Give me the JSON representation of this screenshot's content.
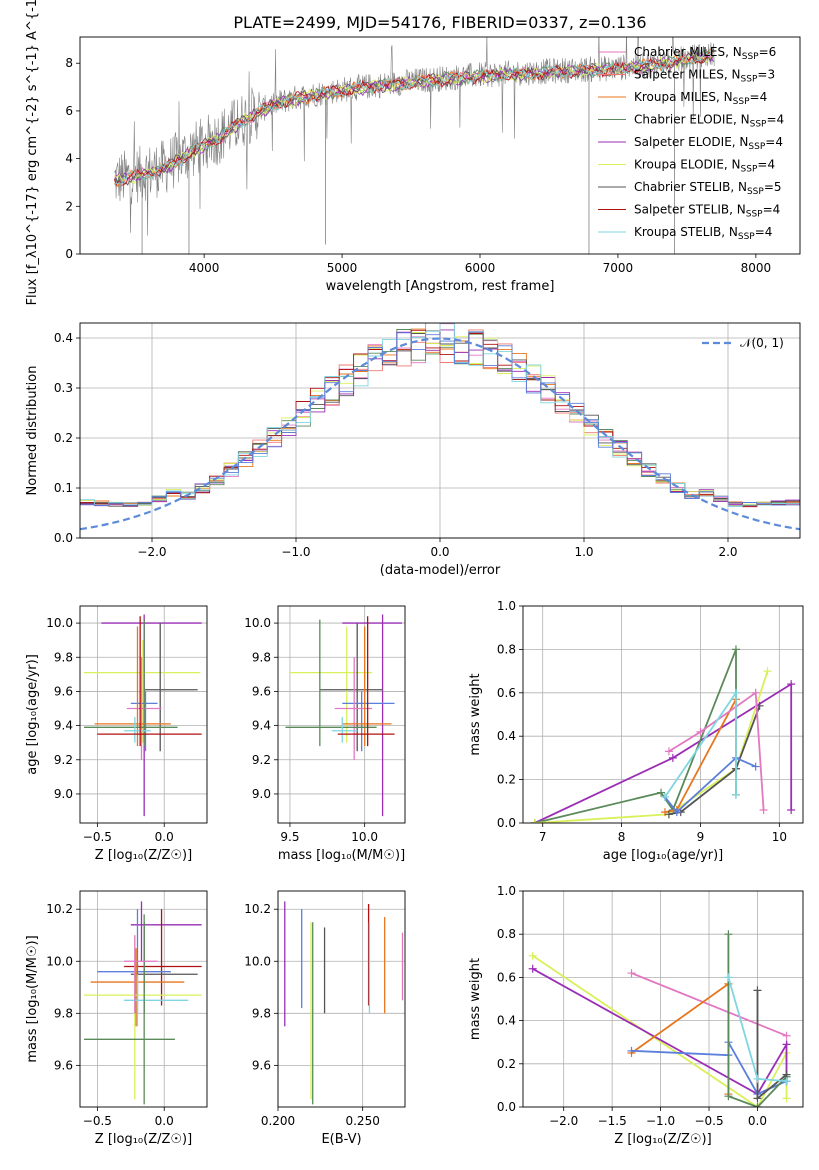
{
  "title": "PLATE=2499, MJD=54176, FIBERID=0337, z=0.136",
  "colors": {
    "Chabrier MILES": "#e377c2",
    "Salpeter MILES": "#f07a72",
    "Kroupa MILES": "#e8761e",
    "Chabrier ELODIE": "#5a8a5a",
    "Salpeter ELODIE": "#9a2fb5",
    "Kroupa ELODIE": "#d9f05a",
    "Chabrier STELIB": "#555555",
    "Salpeter STELIB": "#b01010",
    "Kroupa STELIB": "#7fd6e0",
    "blue_extra": "#5b7fdb",
    "gray_data": "#808080",
    "normal_curve": "#5b8bd9"
  },
  "chart_data": [
    {
      "id": "spectrum",
      "type": "line",
      "xlabel": "wavelength [Angstrom, rest frame]",
      "ylabel": "Flux [f_λ10^{-17} erg cm^{-2} s^{-1} A^{-1}]",
      "xlim": [
        3100,
        8320
      ],
      "ylim": [
        0,
        9.1
      ],
      "xticks": [
        4000,
        5000,
        6000,
        7000,
        8000
      ],
      "yticks": [
        0,
        2,
        4,
        6,
        8
      ],
      "grid": false,
      "legend_position": "top-right",
      "legend": [
        {
          "name": "Chabrier MILES",
          "nssp": "6"
        },
        {
          "name": "Salpeter MILES",
          "nssp": "3"
        },
        {
          "name": "Kroupa MILES",
          "nssp": "4"
        },
        {
          "name": "Chabrier ELODIE",
          "nssp": "4"
        },
        {
          "name": "Salpeter ELODIE",
          "nssp": "4"
        },
        {
          "name": "Kroupa ELODIE",
          "nssp": "4"
        },
        {
          "name": "Chabrier STELIB",
          "nssp": "5"
        },
        {
          "name": "Salpeter STELIB",
          "nssp": "4"
        },
        {
          "name": "Kroupa STELIB",
          "nssp": "4"
        }
      ],
      "continuum": {
        "x": [
          3350,
          3500,
          3700,
          3900,
          4100,
          4300,
          4500,
          4700,
          5000,
          5300,
          5600,
          6000,
          6300,
          6600,
          7000,
          7300,
          7600,
          7700
        ],
        "y": [
          3.1,
          3.3,
          3.6,
          4.3,
          4.9,
          5.7,
          6.3,
          6.6,
          6.9,
          7.1,
          7.3,
          7.5,
          7.6,
          7.7,
          7.8,
          8.0,
          8.3,
          8.4
        ]
      }
    },
    {
      "id": "residuals",
      "type": "line",
      "xlabel": "(data-model)/error",
      "ylabel": "Normed distribution",
      "xlim": [
        -2.5,
        2.5
      ],
      "ylim": [
        0,
        0.43
      ],
      "xticks": [
        -2,
        -1,
        0,
        1,
        2
      ],
      "yticks": [
        0.0,
        0.1,
        0.2,
        0.3,
        0.4
      ],
      "grid": true,
      "legend_position": "top-right",
      "legend_label": "𝒩(0, 1)",
      "bin_width": 0.1,
      "base_hist": [
        0.05,
        0.052,
        0.06,
        0.068,
        0.082,
        0.092,
        0.1,
        0.11,
        0.118,
        0.128,
        0.14,
        0.15,
        0.162,
        0.178,
        0.19,
        0.2,
        0.215,
        0.225,
        0.238,
        0.25,
        0.26,
        0.272,
        0.285,
        0.296,
        0.308,
        0.32,
        0.335,
        0.348,
        0.358,
        0.365,
        0.372,
        0.38,
        0.385,
        0.388,
        0.392,
        0.396,
        0.4,
        0.395,
        0.39,
        0.38,
        0.37,
        0.355,
        0.34,
        0.322,
        0.305,
        0.29,
        0.278,
        0.268,
        0.255,
        0.24,
        0.228,
        0.215,
        0.205,
        0.195,
        0.18,
        0.168,
        0.158,
        0.146,
        0.134,
        0.124,
        0.113,
        0.104,
        0.094,
        0.085,
        0.078,
        0.071,
        0.066,
        0.06,
        0.056,
        0.052,
        0.048,
        0.045,
        0.043,
        0.04,
        0.038,
        0.036,
        0.034,
        0.033,
        0.032,
        0.031,
        0.03,
        0.029,
        0.028,
        0.028,
        0.027,
        0.027,
        0.026,
        0.026,
        0.025,
        0.025,
        0.025,
        0.024,
        0.024,
        0.024,
        0.024,
        0.023,
        0.023,
        0.023,
        0.023,
        0.023,
        0.023
      ]
    },
    {
      "id": "z_age",
      "type": "scatter",
      "xlabel": "Z [log₁₀(Z/Z☉)]",
      "ylabel": "age  [log₁₀(age/yr)]",
      "xlim": [
        -0.63,
        0.32
      ],
      "ylim": [
        8.83,
        10.1
      ],
      "xticks": [
        -0.5,
        0.0
      ],
      "yticks": [
        9.0,
        9.2,
        9.4,
        9.6,
        9.8,
        10.0
      ],
      "grid": true,
      "crosses": [
        {
          "c": "Salpeter ELODIE",
          "x": -0.15,
          "y": 10.0,
          "xe": [
            -0.47,
            0.28
          ],
          "ye": [
            8.87,
            10.05
          ]
        },
        {
          "c": "Kroupa ELODIE",
          "x": -0.16,
          "y": 9.71,
          "xe": [
            -0.6,
            0.27
          ],
          "ye": [
            9.3,
            9.9
          ]
        },
        {
          "c": "Chabrier STELIB",
          "x": -0.03,
          "y": 9.61,
          "xe": [
            -0.15,
            0.25
          ],
          "ye": [
            9.25,
            10.0
          ]
        },
        {
          "c": "blue_extra",
          "x": -0.14,
          "y": 9.53,
          "xe": [
            -0.25,
            -0.05
          ],
          "ye": [
            9.25,
            9.6
          ]
        },
        {
          "c": "Chabrier MILES",
          "x": -0.17,
          "y": 9.5,
          "xe": [
            -0.28,
            -0.02
          ],
          "ye": [
            9.2,
            9.8
          ]
        },
        {
          "c": "Kroupa MILES",
          "x": -0.2,
          "y": 9.41,
          "xe": [
            -0.52,
            0.05
          ],
          "ye": [
            9.28,
            9.98
          ]
        },
        {
          "c": "Chabrier ELODIE",
          "x": -0.15,
          "y": 9.39,
          "xe": [
            -0.6,
            0.1
          ],
          "ye": [
            9.28,
            10.02
          ]
        },
        {
          "c": "Kroupa STELIB",
          "x": -0.22,
          "y": 9.37,
          "xe": [
            -0.3,
            -0.1
          ],
          "ye": [
            9.3,
            9.45
          ]
        },
        {
          "c": "Salpeter STELIB",
          "x": -0.18,
          "y": 9.35,
          "xe": [
            -0.5,
            0.28
          ],
          "ye": [
            9.28,
            10.04
          ]
        }
      ]
    },
    {
      "id": "mass_age",
      "type": "scatter",
      "xlabel": "mass [log₁₀(M/M☉)]",
      "ylabel": "",
      "xlim": [
        9.42,
        10.27
      ],
      "ylim": [
        8.83,
        10.1
      ],
      "xticks": [
        9.5,
        10.0
      ],
      "yticks": [
        9.0,
        9.2,
        9.4,
        9.6,
        9.8,
        10.0
      ],
      "grid": true,
      "crosses": [
        {
          "c": "Salpeter ELODIE",
          "x": 10.12,
          "y": 10.0,
          "xe": [
            9.85,
            10.25
          ],
          "ye": [
            8.87,
            10.05
          ]
        },
        {
          "c": "Kroupa ELODIE",
          "x": 9.88,
          "y": 9.71,
          "xe": [
            9.5,
            10.05
          ],
          "ye": [
            9.3,
            9.98
          ]
        },
        {
          "c": "Chabrier STELIB",
          "x": 9.95,
          "y": 9.61,
          "xe": [
            9.7,
            10.12
          ],
          "ye": [
            9.25,
            10.0
          ]
        },
        {
          "c": "blue_extra",
          "x": 9.98,
          "y": 9.53,
          "xe": [
            9.85,
            10.2
          ],
          "ye": [
            9.25,
            9.6
          ]
        },
        {
          "c": "Chabrier MILES",
          "x": 9.93,
          "y": 9.5,
          "xe": [
            9.8,
            10.05
          ],
          "ye": [
            9.2,
            9.8
          ]
        },
        {
          "c": "Kroupa MILES",
          "x": 10.0,
          "y": 9.41,
          "xe": [
            9.85,
            10.18
          ],
          "ye": [
            9.28,
            9.98
          ]
        },
        {
          "c": "Chabrier ELODIE",
          "x": 9.7,
          "y": 9.39,
          "xe": [
            9.47,
            10.08
          ],
          "ye": [
            9.28,
            10.02
          ]
        },
        {
          "c": "Kroupa STELIB",
          "x": 9.85,
          "y": 9.37,
          "xe": [
            9.78,
            9.95
          ],
          "ye": [
            9.3,
            9.45
          ]
        },
        {
          "c": "Salpeter STELIB",
          "x": 10.02,
          "y": 9.35,
          "xe": [
            9.82,
            10.2
          ],
          "ye": [
            9.28,
            10.04
          ]
        }
      ]
    },
    {
      "id": "age_weight",
      "type": "line",
      "xlabel": "age  [log₁₀(age/yr)]",
      "ylabel": "mass weight",
      "xlim": [
        6.75,
        10.3
      ],
      "ylim": [
        0,
        1
      ],
      "xticks": [
        7,
        8,
        9,
        10
      ],
      "yticks": [
        0.0,
        0.2,
        0.4,
        0.6,
        0.8,
        1.0
      ],
      "grid": true,
      "series": [
        {
          "c": "Salpeter ELODIE",
          "x": [
            6.9,
            8.65,
            10.15,
            10.15
          ],
          "y": [
            0.0,
            0.3,
            0.64,
            0.06
          ]
        },
        {
          "c": "Chabrier ELODIE",
          "x": [
            6.9,
            8.5,
            8.65,
            9.45,
            9.45
          ],
          "y": [
            0.0,
            0.14,
            0.06,
            0.8,
            0.13
          ]
        },
        {
          "c": "Kroupa ELODIE",
          "x": [
            6.9,
            8.6,
            9.45,
            9.85
          ],
          "y": [
            0.0,
            0.04,
            0.25,
            0.7
          ]
        },
        {
          "c": "Kroupa MILES",
          "x": [
            8.55,
            8.7,
            9.45,
            9.45
          ],
          "y": [
            0.05,
            0.06,
            0.57,
            0.25
          ]
        },
        {
          "c": "Chabrier STELIB",
          "x": [
            8.6,
            8.75,
            9.45,
            9.75
          ],
          "y": [
            0.04,
            0.05,
            0.25,
            0.54
          ]
        },
        {
          "c": "blue_extra",
          "x": [
            8.55,
            8.7,
            9.45,
            9.7
          ],
          "y": [
            0.12,
            0.05,
            0.3,
            0.26
          ]
        },
        {
          "c": "Chabrier MILES",
          "x": [
            8.6,
            9.0,
            9.7,
            9.8
          ],
          "y": [
            0.33,
            0.42,
            0.6,
            0.06
          ]
        },
        {
          "c": "Kroupa STELIB",
          "x": [
            8.55,
            9.45,
            9.45
          ],
          "y": [
            0.12,
            0.6,
            0.13
          ]
        }
      ]
    },
    {
      "id": "z_mass",
      "type": "scatter",
      "xlabel": "Z [log₁₀(Z/Z☉)]",
      "ylabel": "mass [log₁₀(M/M☉)]",
      "xlim": [
        -0.63,
        0.32
      ],
      "ylim": [
        9.44,
        10.27
      ],
      "xticks": [
        -0.5,
        0.0
      ],
      "yticks": [
        9.6,
        9.8,
        10.0,
        10.2
      ],
      "grid": true,
      "crosses": [
        {
          "c": "Salpeter ELODIE",
          "x": -0.17,
          "y": 10.14,
          "xe": [
            -0.25,
            0.28
          ],
          "ye": [
            10.0,
            10.23
          ]
        },
        {
          "c": "Salpeter STELIB",
          "x": -0.02,
          "y": 9.98,
          "xe": [
            -0.3,
            0.28
          ],
          "ye": [
            9.83,
            10.2
          ]
        },
        {
          "c": "blue_extra",
          "x": -0.2,
          "y": 9.96,
          "xe": [
            -0.5,
            0.05
          ],
          "ye": [
            9.8,
            10.2
          ]
        },
        {
          "c": "Chabrier STELIB",
          "x": -0.15,
          "y": 9.95,
          "xe": [
            -0.25,
            0.25
          ],
          "ye": [
            9.8,
            10.15
          ]
        },
        {
          "c": "Kroupa MILES",
          "x": -0.21,
          "y": 9.92,
          "xe": [
            -0.55,
            0.15
          ],
          "ye": [
            9.75,
            10.05
          ]
        },
        {
          "c": "Kroupa ELODIE",
          "x": -0.22,
          "y": 9.87,
          "xe": [
            -0.6,
            0.28
          ],
          "ye": [
            9.47,
            10.1
          ]
        },
        {
          "c": "Kroupa STELIB",
          "x": -0.2,
          "y": 9.85,
          "xe": [
            -0.3,
            0.18
          ],
          "ye": [
            9.75,
            9.95
          ]
        },
        {
          "c": "Chabrier ELODIE",
          "x": -0.15,
          "y": 9.7,
          "xe": [
            -0.6,
            0.08
          ],
          "ye": [
            9.45,
            10.18
          ]
        },
        {
          "c": "Chabrier MILES",
          "x": -0.22,
          "y": 10.0,
          "xe": [
            -0.3,
            -0.05
          ],
          "ye": [
            9.8,
            10.1
          ]
        }
      ]
    },
    {
      "id": "ebv_mass",
      "type": "scatter",
      "xlabel": "E(B-V)",
      "ylabel": "",
      "xlim": [
        0.2,
        0.275
      ],
      "ylim": [
        9.44,
        10.27
      ],
      "xticks": [
        0.2,
        0.25
      ],
      "yticks": [
        9.6,
        9.8,
        10.0,
        10.2
      ],
      "grid": true,
      "vlines": [
        {
          "c": "Salpeter ELODIE",
          "x": 0.204,
          "ye": [
            9.75,
            10.23
          ]
        },
        {
          "c": "blue_extra",
          "x": 0.214,
          "ye": [
            9.82,
            10.2
          ]
        },
        {
          "c": "Kroupa ELODIE",
          "x": 0.2195,
          "ye": [
            9.47,
            10.15
          ]
        },
        {
          "c": "Chabrier ELODIE",
          "x": 0.2205,
          "ye": [
            9.45,
            10.15
          ]
        },
        {
          "c": "Chabrier STELIB",
          "x": 0.2275,
          "ye": [
            9.8,
            10.13
          ]
        },
        {
          "c": "Salpeter STELIB",
          "x": 0.2535,
          "ye": [
            9.83,
            10.22
          ]
        },
        {
          "c": "Kroupa STELIB",
          "x": 0.254,
          "ye": [
            9.8,
            10.15
          ]
        },
        {
          "c": "Kroupa MILES",
          "x": 0.263,
          "ye": [
            9.8,
            10.17
          ]
        },
        {
          "c": "Chabrier MILES",
          "x": 0.2735,
          "ye": [
            9.85,
            10.11
          ]
        }
      ]
    },
    {
      "id": "z_weight",
      "type": "line",
      "xlabel": "Z [log₁₀(Z/Z☉)]",
      "ylabel": "mass weight",
      "xlim": [
        -2.42,
        0.47
      ],
      "ylim": [
        0,
        1
      ],
      "xticks": [
        -2.0,
        -1.5,
        -1.0,
        -0.5,
        0.0
      ],
      "yticks": [
        0.0,
        0.2,
        0.4,
        0.6,
        0.8,
        1.0
      ],
      "grid": true,
      "series": [
        {
          "c": "Kroupa ELODIE",
          "x": [
            -2.32,
            0.0,
            0.3,
            0.3
          ],
          "y": [
            0.7,
            0.0,
            0.25,
            0.04
          ]
        },
        {
          "c": "Salpeter ELODIE",
          "x": [
            -2.32,
            0.0,
            0.3,
            0.3
          ],
          "y": [
            0.64,
            0.06,
            0.29,
            0.12
          ]
        },
        {
          "c": "Chabrier MILES",
          "x": [
            -1.3,
            0.3
          ],
          "y": [
            0.62,
            0.33
          ]
        },
        {
          "c": "Kroupa MILES",
          "x": [
            -1.3,
            -0.3,
            -0.3
          ],
          "y": [
            0.25,
            0.57,
            0.06
          ]
        },
        {
          "c": "blue_extra",
          "x": [
            -1.3,
            -0.3,
            -0.3,
            0.0,
            0.3
          ],
          "y": [
            0.26,
            0.24,
            0.3,
            0.06,
            0.12
          ]
        },
        {
          "c": "Chabrier ELODIE",
          "x": [
            -0.3,
            -0.3,
            0.0,
            0.3
          ],
          "y": [
            0.8,
            0.05,
            0.0,
            0.14
          ]
        },
        {
          "c": "Chabrier STELIB",
          "x": [
            0.0,
            0.0,
            0.3,
            0.3
          ],
          "y": [
            0.54,
            0.04,
            0.15,
            0.12
          ]
        },
        {
          "c": "Kroupa STELIB",
          "x": [
            -0.3,
            0.0,
            0.3
          ],
          "y": [
            0.6,
            0.13,
            0.12
          ]
        }
      ]
    }
  ]
}
